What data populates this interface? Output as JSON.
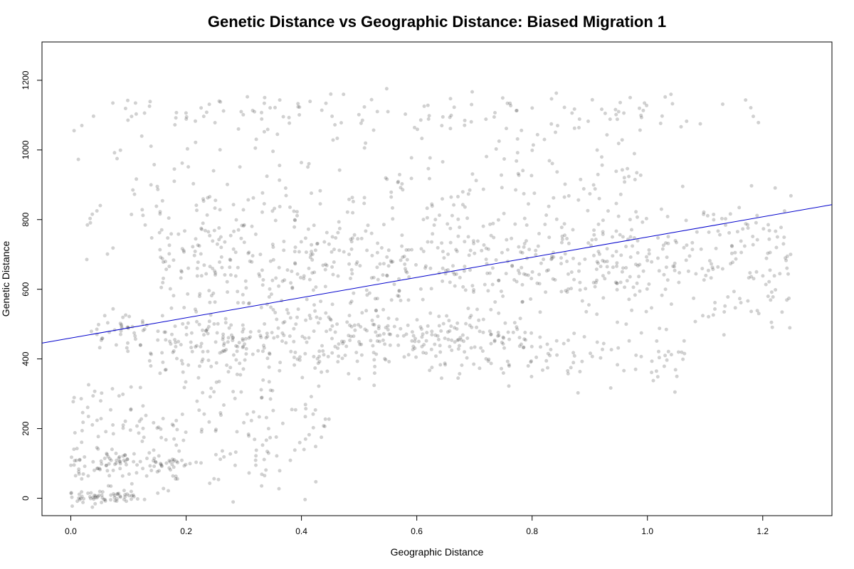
{
  "chart_data": {
    "type": "scatter",
    "title": "Genetic Distance vs Geographic Distance: Biased Migration 1",
    "xlabel": "Geographic Distance",
    "ylabel": "Genetic Distance",
    "xlim": [
      -0.05,
      1.32
    ],
    "ylim": [
      -50,
      1310
    ],
    "x_ticks": [
      "0.0",
      "0.2",
      "0.4",
      "0.6",
      "0.8",
      "1.0",
      "1.2"
    ],
    "y_ticks": [
      "0",
      "200",
      "400",
      "600",
      "800",
      "1000",
      "1200"
    ],
    "grid": false,
    "point_color": "#000000",
    "point_opacity": 0.03,
    "regression_line": {
      "color": "#0000cc",
      "intercept": 460,
      "slope": 290
    },
    "point_clusters": [
      {
        "x_range": [
          0.0,
          0.12
        ],
        "y_center": 5,
        "y_spread": 10
      },
      {
        "x_range": [
          0.15,
          1.25
        ],
        "y_center": 680,
        "y_spread": 90
      },
      {
        "x_range": [
          0.03,
          0.8
        ],
        "y_center": 470,
        "y_spread": 30
      },
      {
        "x_range": [
          0.15,
          1.1
        ],
        "y_center": 410,
        "y_spread": 40
      },
      {
        "x_range": [
          0.0,
          1.0
        ],
        "y_center": 900,
        "y_spread": 120
      },
      {
        "x_range": [
          0.05,
          1.2
        ],
        "y_center": 1110,
        "y_spread": 25
      },
      {
        "x_range": [
          0.0,
          0.45
        ],
        "y_center": 200,
        "y_spread": 90
      },
      {
        "x_range": [
          0.0,
          0.2
        ],
        "y_center": 95,
        "y_spread": 20
      }
    ]
  }
}
